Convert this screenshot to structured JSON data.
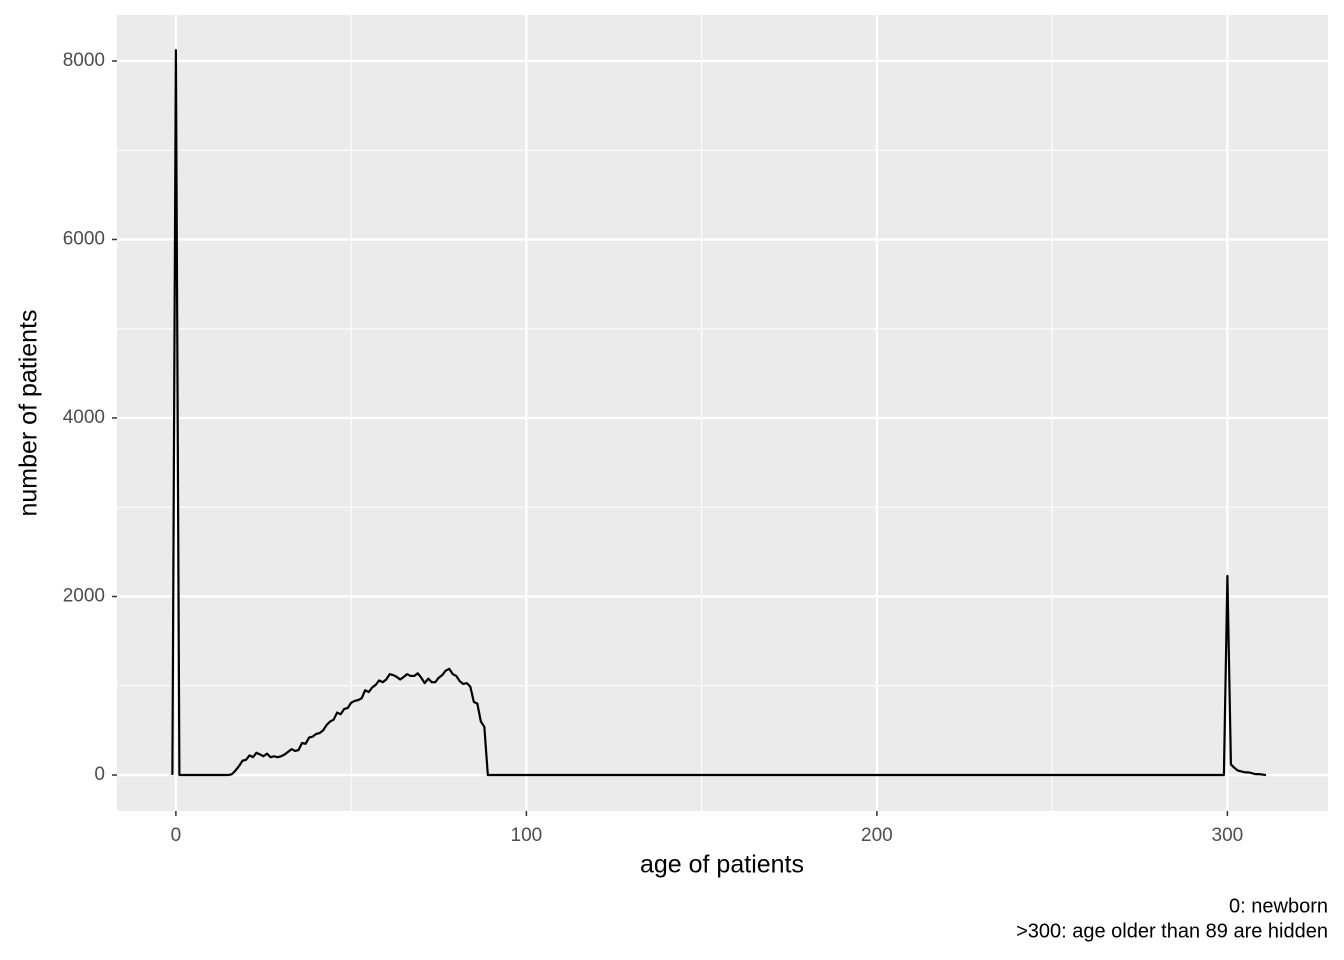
{
  "chart_data": {
    "type": "line",
    "x_label": "age of patients",
    "y_label": "number of patients",
    "caption": [
      "0: newborn",
      ">300: age older than 89 are hidden"
    ],
    "x": [
      -1,
      0,
      1,
      14,
      15,
      16,
      17,
      18,
      19,
      20,
      21,
      22,
      23,
      24,
      25,
      26,
      27,
      28,
      29,
      30,
      31,
      32,
      33,
      34,
      35,
      36,
      37,
      38,
      39,
      40,
      41,
      42,
      43,
      44,
      45,
      46,
      47,
      48,
      49,
      50,
      51,
      52,
      53,
      54,
      55,
      56,
      57,
      58,
      59,
      60,
      61,
      62,
      63,
      64,
      65,
      66,
      67,
      68,
      69,
      70,
      71,
      72,
      73,
      74,
      75,
      76,
      77,
      78,
      79,
      80,
      81,
      82,
      83,
      84,
      85,
      86,
      87,
      88,
      89,
      299,
      300,
      301,
      302,
      303,
      304,
      305,
      306,
      307,
      308,
      309,
      310,
      311
    ],
    "values": [
      0,
      8120,
      0,
      0,
      0,
      10,
      50,
      100,
      160,
      170,
      220,
      200,
      250,
      230,
      210,
      240,
      200,
      210,
      200,
      210,
      230,
      260,
      290,
      270,
      280,
      360,
      350,
      420,
      430,
      460,
      470,
      500,
      560,
      600,
      620,
      700,
      680,
      740,
      750,
      810,
      830,
      840,
      860,
      950,
      930,
      980,
      1010,
      1060,
      1040,
      1070,
      1130,
      1120,
      1100,
      1070,
      1100,
      1130,
      1110,
      1110,
      1140,
      1090,
      1030,
      1080,
      1040,
      1040,
      1090,
      1120,
      1170,
      1190,
      1130,
      1110,
      1050,
      1020,
      1030,
      990,
      820,
      800,
      600,
      540,
      0,
      0,
      2230,
      120,
      80,
      50,
      40,
      30,
      30,
      20,
      10,
      10,
      5,
      0
    ],
    "color": "#000000",
    "xlim": [
      -16.8,
      328.7
    ],
    "ylim": [
      -403,
      8515
    ],
    "xticks": [
      0,
      100,
      200,
      300
    ],
    "yticks": [
      0,
      2000,
      4000,
      6000,
      8000
    ],
    "xminor": [
      50,
      150,
      250
    ],
    "yminor": [
      1000,
      3000,
      5000,
      7000
    ],
    "grid": true
  }
}
